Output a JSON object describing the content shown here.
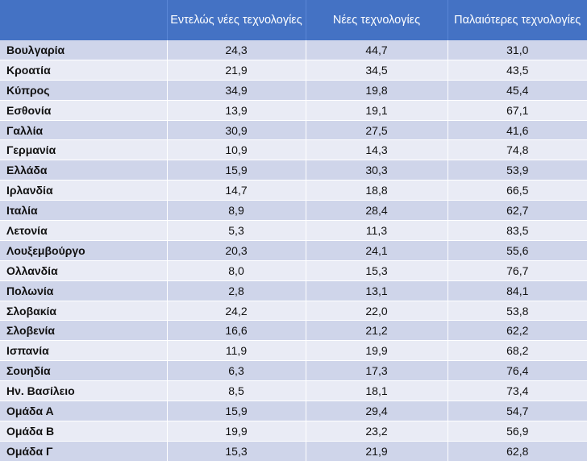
{
  "table": {
    "headers": [
      "",
      "Εντελώς νέες τεχνολογίες",
      "Νέες τεχνολογίες",
      "Παλαιότερες τεχνολογίες"
    ],
    "rows": [
      {
        "name": "Βουλγαρία",
        "v1": "24,3",
        "v2": "44,7",
        "v3": "31,0"
      },
      {
        "name": "Κροατία",
        "v1": "21,9",
        "v2": "34,5",
        "v3": "43,5"
      },
      {
        "name": "Κύπρος",
        "v1": "34,9",
        "v2": "19,8",
        "v3": "45,4"
      },
      {
        "name": "Εσθονία",
        "v1": "13,9",
        "v2": "19,1",
        "v3": "67,1"
      },
      {
        "name": "Γαλλία",
        "v1": "30,9",
        "v2": "27,5",
        "v3": "41,6"
      },
      {
        "name": "Γερμανία",
        "v1": "10,9",
        "v2": "14,3",
        "v3": "74,8"
      },
      {
        "name": "Ελλάδα",
        "v1": "15,9",
        "v2": "30,3",
        "v3": "53,9"
      },
      {
        "name": "Ιρλανδία",
        "v1": "14,7",
        "v2": "18,8",
        "v3": "66,5"
      },
      {
        "name": "Ιταλία",
        "v1": "8,9",
        "v2": "28,4",
        "v3": "62,7"
      },
      {
        "name": "Λετονία",
        "v1": "5,3",
        "v2": "11,3",
        "v3": "83,5"
      },
      {
        "name": "Λουξεμβούργο",
        "v1": "20,3",
        "v2": "24,1",
        "v3": "55,6"
      },
      {
        "name": "Ολλανδία",
        "v1": "8,0",
        "v2": "15,3",
        "v3": "76,7"
      },
      {
        "name": "Πολωνία",
        "v1": "2,8",
        "v2": "13,1",
        "v3": "84,1"
      },
      {
        "name": "Σλοβακία",
        "v1": "24,2",
        "v2": "22,0",
        "v3": "53,8"
      },
      {
        "name": "Σλοβενία",
        "v1": "16,6",
        "v2": "21,2",
        "v3": "62,2"
      },
      {
        "name": "Ισπανία",
        "v1": "11,9",
        "v2": "19,9",
        "v3": "68,2"
      },
      {
        "name": "Σουηδία",
        "v1": "6,3",
        "v2": "17,3",
        "v3": "76,4"
      },
      {
        "name": "Ην. Βασίλειο",
        "v1": "8,5",
        "v2": "18,1",
        "v3": "73,4"
      },
      {
        "name": "Ομάδα Α",
        "v1": "15,9",
        "v2": "29,4",
        "v3": "54,7"
      },
      {
        "name": "Ομάδα Β",
        "v1": "19,9",
        "v2": "23,2",
        "v3": "56,9"
      },
      {
        "name": "Ομάδα Γ",
        "v1": "15,3",
        "v2": "21,9",
        "v3": "62,8"
      }
    ]
  },
  "colors": {
    "header_bg": "#4472c4",
    "row_band_dark": "#cfd5ea",
    "row_band_light": "#e9ebf5"
  }
}
